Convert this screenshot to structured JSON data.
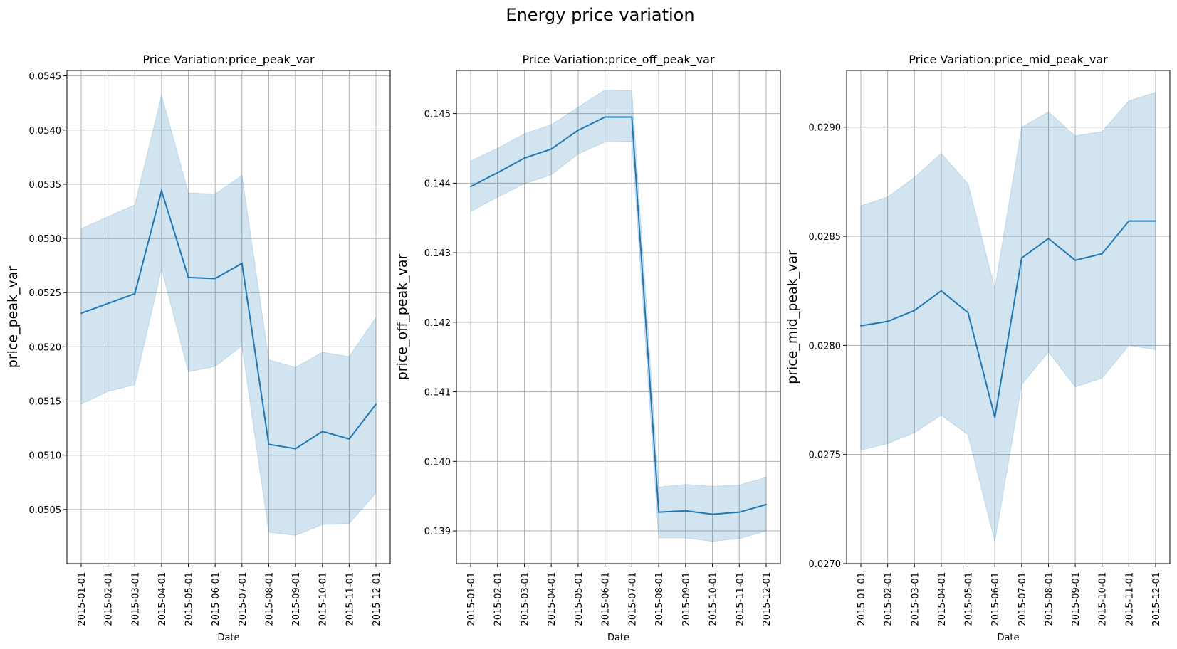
{
  "figure": {
    "suptitle": "Energy price variation"
  },
  "chart_data": [
    {
      "type": "line",
      "title": "Price Variation:price_peak_var",
      "xlabel": "Date",
      "ylabel": "price_peak_var",
      "x": [
        "2015-01-01",
        "2015-02-01",
        "2015-03-01",
        "2015-04-01",
        "2015-05-01",
        "2015-06-01",
        "2015-07-01",
        "2015-08-01",
        "2015-09-01",
        "2015-10-01",
        "2015-11-01",
        "2015-12-01"
      ],
      "values": [
        0.05231,
        0.0524,
        0.05249,
        0.05344,
        0.05264,
        0.05263,
        0.05277,
        0.0511,
        0.05106,
        0.05122,
        0.05115,
        0.05147
      ],
      "ci_upper": [
        0.05309,
        0.0532,
        0.05331,
        0.05432,
        0.05342,
        0.05341,
        0.05358,
        0.05188,
        0.05181,
        0.05195,
        0.05191,
        0.05227
      ],
      "ci_lower": [
        0.05147,
        0.05159,
        0.05165,
        0.05272,
        0.05177,
        0.05182,
        0.05201,
        0.05029,
        0.05026,
        0.05036,
        0.05037,
        0.05065
      ],
      "ylim": [
        0.05,
        0.05455
      ],
      "yticks": [
        0.0505,
        0.051,
        0.0515,
        0.052,
        0.0525,
        0.053,
        0.0535,
        0.054,
        0.0545
      ],
      "yticklabels": [
        "0.0505",
        "0.0510",
        "0.0515",
        "0.0520",
        "0.0525",
        "0.0530",
        "0.0535",
        "0.0540",
        "0.0545"
      ],
      "grid": true,
      "line_color": "#1f77b4",
      "band_color": "#1f77b4"
    },
    {
      "type": "line",
      "title": "Price Variation:price_off_peak_var",
      "xlabel": "Date",
      "ylabel": "price_off_peak_var",
      "x": [
        "2015-01-01",
        "2015-02-01",
        "2015-03-01",
        "2015-04-01",
        "2015-05-01",
        "2015-06-01",
        "2015-07-01",
        "2015-08-01",
        "2015-09-01",
        "2015-10-01",
        "2015-11-01",
        "2015-12-01"
      ],
      "values": [
        0.14395,
        0.14415,
        0.14436,
        0.14449,
        0.14476,
        0.14495,
        0.14495,
        0.13927,
        0.13929,
        0.13924,
        0.13927,
        0.13938
      ],
      "ci_upper": [
        0.14432,
        0.1445,
        0.14471,
        0.14484,
        0.14509,
        0.14534,
        0.14533,
        0.13963,
        0.13967,
        0.13964,
        0.13966,
        0.13977
      ],
      "ci_lower": [
        0.14359,
        0.1438,
        0.14399,
        0.14412,
        0.14442,
        0.14459,
        0.1446,
        0.1389,
        0.1389,
        0.13885,
        0.13889,
        0.139
      ],
      "ylim": [
        0.13853,
        0.14562
      ],
      "yticks": [
        0.139,
        0.14,
        0.141,
        0.142,
        0.143,
        0.144,
        0.145
      ],
      "yticklabels": [
        "0.139",
        "0.140",
        "0.141",
        "0.142",
        "0.143",
        "0.144",
        "0.145"
      ],
      "grid": true,
      "line_color": "#1f77b4",
      "band_color": "#1f77b4"
    },
    {
      "type": "line",
      "title": "Price Variation:price_mid_peak_var",
      "xlabel": "Date",
      "ylabel": "price_mid_peak_var",
      "x": [
        "2015-01-01",
        "2015-02-01",
        "2015-03-01",
        "2015-04-01",
        "2015-05-01",
        "2015-06-01",
        "2015-07-01",
        "2015-08-01",
        "2015-09-01",
        "2015-10-01",
        "2015-11-01",
        "2015-12-01"
      ],
      "values": [
        0.02809,
        0.02811,
        0.02816,
        0.02825,
        0.02815,
        0.02767,
        0.0284,
        0.02849,
        0.02839,
        0.02842,
        0.02857,
        0.02857
      ],
      "ci_upper": [
        0.02864,
        0.02868,
        0.02877,
        0.02888,
        0.02874,
        0.02826,
        0.029,
        0.02907,
        0.02896,
        0.02898,
        0.02912,
        0.02916
      ],
      "ci_lower": [
        0.02752,
        0.02755,
        0.0276,
        0.02768,
        0.02759,
        0.0271,
        0.02782,
        0.02797,
        0.02781,
        0.02785,
        0.028,
        0.02798
      ],
      "ylim": [
        0.027,
        0.02926
      ],
      "yticks": [
        0.027,
        0.0275,
        0.028,
        0.0285,
        0.029
      ],
      "yticklabels": [
        "0.0270",
        "0.0275",
        "0.0280",
        "0.0285",
        "0.0290"
      ],
      "grid": true,
      "line_color": "#1f77b4",
      "band_color": "#1f77b4"
    }
  ]
}
